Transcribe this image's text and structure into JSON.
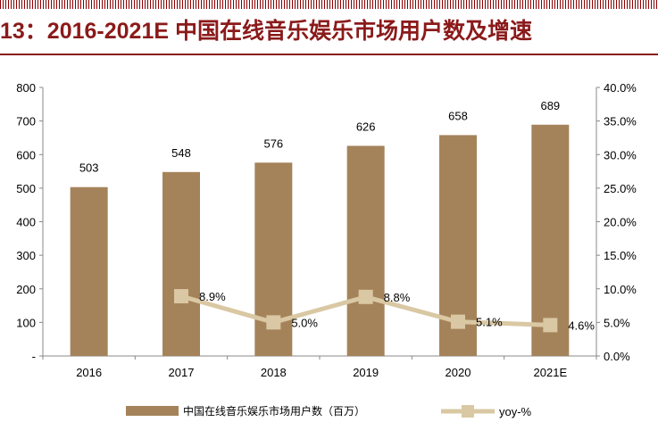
{
  "title": "13：2016-2021E 中国在线音乐娱乐市场用户数及增速",
  "colors": {
    "bar": "#a5835a",
    "line": "#d9c8a3",
    "marker": "#d9c8a3",
    "accent": "#8b1a1a"
  },
  "chart_data": {
    "type": "bar",
    "categories": [
      "2016",
      "2017",
      "2018",
      "2019",
      "2020",
      "2021E"
    ],
    "series": [
      {
        "name": "中国在线音乐娱乐市场用户数（百万）",
        "type": "bar",
        "axis": "left",
        "values": [
          503,
          548,
          576,
          626,
          658,
          689
        ],
        "labels": [
          "503",
          "548",
          "576",
          "626",
          "658",
          "689"
        ]
      },
      {
        "name": "yoy-%",
        "type": "line",
        "axis": "right",
        "values": [
          null,
          8.9,
          5.0,
          8.8,
          5.1,
          4.6
        ],
        "labels": [
          "",
          "8.9%",
          "5.0%",
          "8.8%",
          "5.1%",
          "4.6%"
        ]
      }
    ],
    "y_left": {
      "ylim": [
        0,
        800
      ],
      "ticks": [
        "-",
        "100",
        "200",
        "300",
        "400",
        "500",
        "600",
        "700",
        "800"
      ]
    },
    "y_right": {
      "ylim": [
        0,
        40
      ],
      "ticks": [
        "0.0%",
        "5.0%",
        "10.0%",
        "15.0%",
        "20.0%",
        "25.0%",
        "30.0%",
        "35.0%",
        "40.0%"
      ]
    },
    "grid": false,
    "legend_position": "bottom"
  }
}
